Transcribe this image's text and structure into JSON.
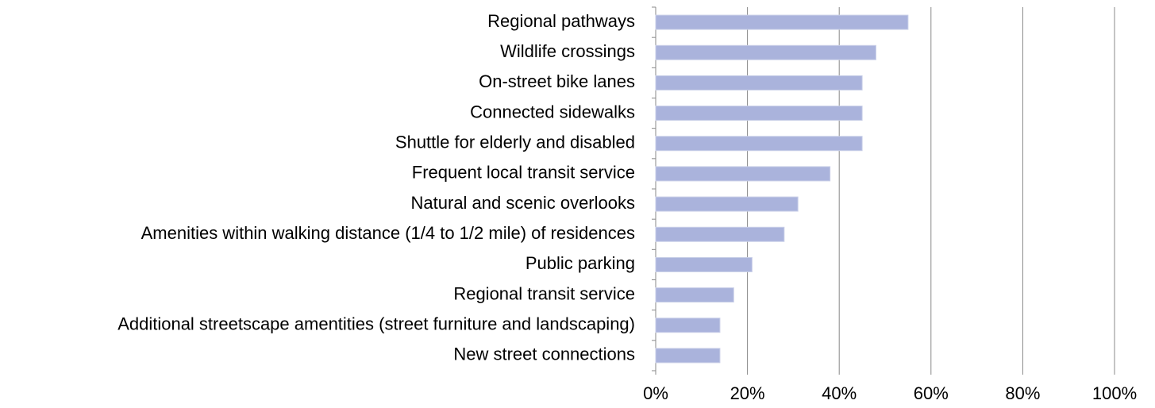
{
  "chart_data": {
    "type": "barh",
    "categories": [
      "Regional pathways",
      "Wildlife crossings",
      "On-street bike lanes",
      "Connected sidewalks",
      "Shuttle for elderly and disabled",
      "Frequent local transit service",
      "Natural and scenic overlooks",
      "Amenities within walking distance (1/4 to 1/2 mile) of residences",
      "Public parking",
      "Regional transit service",
      "Additional streetscape amentities (street furniture and landscaping)",
      "New street connections"
    ],
    "values": [
      55,
      48,
      45,
      45,
      45,
      38,
      31,
      28,
      21,
      17,
      14,
      14
    ],
    "color": "#aab3dc",
    "xlim": [
      0,
      100
    ],
    "xticks": [
      {
        "value": 0,
        "label": "0%"
      },
      {
        "value": 20,
        "label": "20%"
      },
      {
        "value": 40,
        "label": "40%"
      },
      {
        "value": 60,
        "label": "60%"
      },
      {
        "value": 80,
        "label": "80%"
      },
      {
        "value": 100,
        "label": "100%"
      }
    ],
    "grid": true
  }
}
